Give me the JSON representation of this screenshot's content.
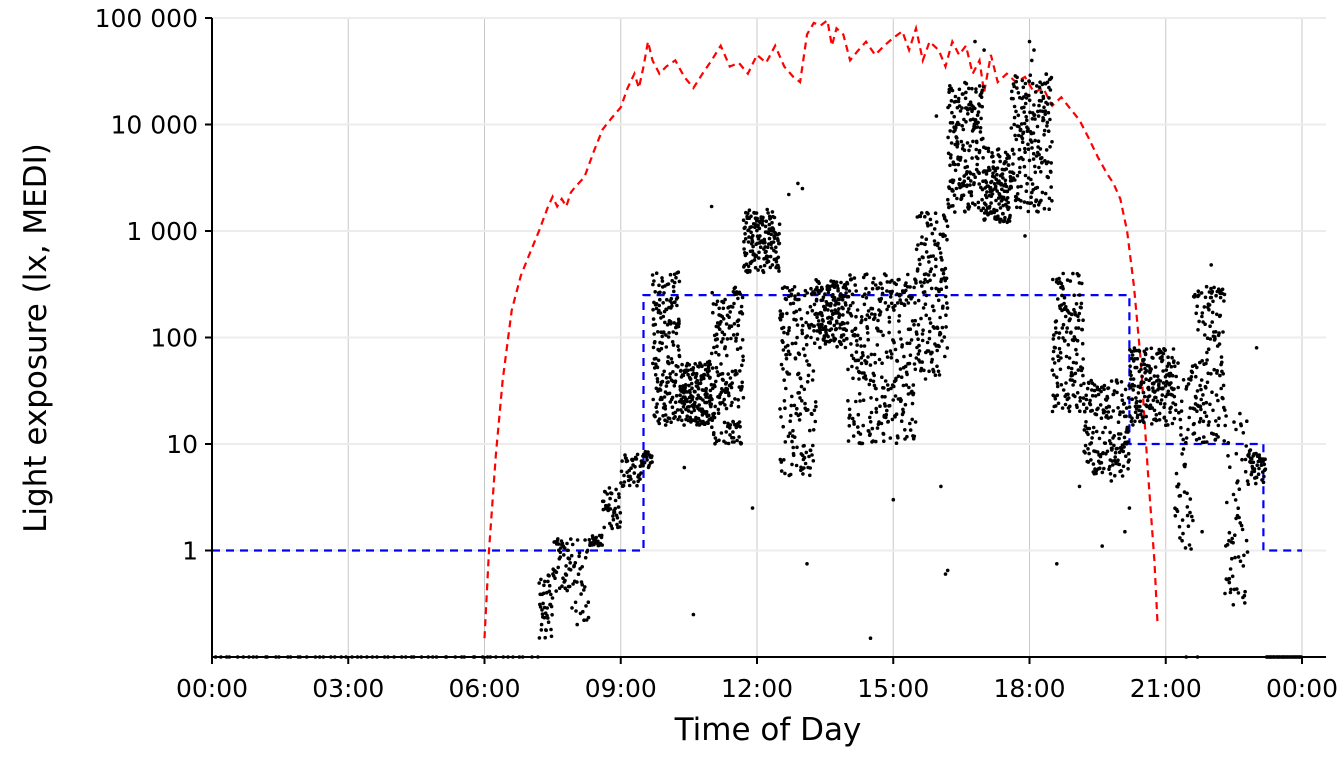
{
  "chart_data": {
    "type": "scatter",
    "title": "",
    "xlabel": "Time of Day",
    "ylabel": "Light exposure (lx, MEDI)",
    "x_unit": "hours",
    "xlim": [
      0,
      24.5
    ],
    "ylim": [
      0.1,
      100000
    ],
    "y_scale": "log",
    "grid": true,
    "legend": "none",
    "x_ticks": [
      {
        "value": 0,
        "label": "00:00"
      },
      {
        "value": 3,
        "label": "03:00"
      },
      {
        "value": 6,
        "label": "06:00"
      },
      {
        "value": 9,
        "label": "09:00"
      },
      {
        "value": 12,
        "label": "12:00"
      },
      {
        "value": 15,
        "label": "15:00"
      },
      {
        "value": 18,
        "label": "18:00"
      },
      {
        "value": 21,
        "label": "21:00"
      },
      {
        "value": 24,
        "label": "00:00"
      }
    ],
    "y_ticks": [
      {
        "value": 1,
        "label": "1"
      },
      {
        "value": 10,
        "label": "10"
      },
      {
        "value": 100,
        "label": "100"
      },
      {
        "value": 1000,
        "label": "1 000"
      },
      {
        "value": 10000,
        "label": "10 000"
      },
      {
        "value": 100000,
        "label": "100 000"
      }
    ],
    "series": [
      {
        "style": "dashed-line",
        "color": "#ff0000",
        "points": [
          [
            6.0,
            0.15
          ],
          [
            6.1,
            1.0
          ],
          [
            6.25,
            8
          ],
          [
            6.4,
            40
          ],
          [
            6.6,
            180
          ],
          [
            6.8,
            380
          ],
          [
            7.0,
            620
          ],
          [
            7.2,
            1000
          ],
          [
            7.4,
            1700
          ],
          [
            7.5,
            2100
          ],
          [
            7.6,
            1700
          ],
          [
            7.7,
            2000
          ],
          [
            7.8,
            1700
          ],
          [
            7.9,
            2300
          ],
          [
            8.0,
            2600
          ],
          [
            8.2,
            3200
          ],
          [
            8.4,
            5500
          ],
          [
            8.6,
            9000
          ],
          [
            8.8,
            11500
          ],
          [
            9.0,
            14500
          ],
          [
            9.15,
            22000
          ],
          [
            9.3,
            30000
          ],
          [
            9.4,
            22000
          ],
          [
            9.5,
            35000
          ],
          [
            9.6,
            60000
          ],
          [
            9.7,
            40000
          ],
          [
            9.85,
            30000
          ],
          [
            10.0,
            35000
          ],
          [
            10.2,
            40000
          ],
          [
            10.4,
            28000
          ],
          [
            10.6,
            22000
          ],
          [
            10.8,
            30000
          ],
          [
            11.0,
            40000
          ],
          [
            11.2,
            55000
          ],
          [
            11.4,
            35000
          ],
          [
            11.6,
            38000
          ],
          [
            11.8,
            30000
          ],
          [
            12.0,
            45000
          ],
          [
            12.2,
            38000
          ],
          [
            12.4,
            55000
          ],
          [
            12.6,
            35000
          ],
          [
            12.8,
            28000
          ],
          [
            12.95,
            25000
          ],
          [
            13.1,
            70000
          ],
          [
            13.25,
            90000
          ],
          [
            13.4,
            85000
          ],
          [
            13.55,
            95000
          ],
          [
            13.65,
            55000
          ],
          [
            13.75,
            80000
          ],
          [
            13.9,
            70000
          ],
          [
            14.05,
            40000
          ],
          [
            14.2,
            48000
          ],
          [
            14.4,
            60000
          ],
          [
            14.6,
            45000
          ],
          [
            14.8,
            55000
          ],
          [
            15.0,
            65000
          ],
          [
            15.2,
            75000
          ],
          [
            15.35,
            50000
          ],
          [
            15.5,
            80000
          ],
          [
            15.65,
            40000
          ],
          [
            15.8,
            60000
          ],
          [
            16.0,
            50000
          ],
          [
            16.15,
            35000
          ],
          [
            16.3,
            60000
          ],
          [
            16.45,
            45000
          ],
          [
            16.6,
            55000
          ],
          [
            16.75,
            30000
          ],
          [
            16.9,
            40000
          ],
          [
            17.0,
            20000
          ],
          [
            17.15,
            45000
          ],
          [
            17.3,
            25000
          ],
          [
            17.5,
            30000
          ],
          [
            17.7,
            25000
          ],
          [
            17.9,
            28000
          ],
          [
            18.1,
            20000
          ],
          [
            18.3,
            22000
          ],
          [
            18.5,
            15000
          ],
          [
            18.7,
            18000
          ],
          [
            18.9,
            14000
          ],
          [
            19.1,
            11000
          ],
          [
            19.3,
            7500
          ],
          [
            19.5,
            5000
          ],
          [
            19.7,
            3500
          ],
          [
            19.85,
            2800
          ],
          [
            20.0,
            2000
          ],
          [
            20.15,
            1000
          ],
          [
            20.3,
            300
          ],
          [
            20.45,
            60
          ],
          [
            20.6,
            6
          ],
          [
            20.75,
            0.8
          ],
          [
            20.82,
            0.2
          ]
        ]
      },
      {
        "style": "dashed-step",
        "color": "#0000ff",
        "points": [
          [
            0,
            1
          ],
          [
            9.5,
            1
          ],
          [
            9.5,
            250
          ],
          [
            20.2,
            250
          ],
          [
            20.2,
            10
          ],
          [
            23.15,
            10
          ],
          [
            23.15,
            1
          ],
          [
            24,
            1
          ]
        ]
      },
      {
        "style": "points",
        "color": "#000000",
        "segments": [
          {
            "t0": 0,
            "t1": 7.2,
            "ylo": 0.1,
            "yhi": 0.1,
            "n": 60
          },
          {
            "t0": 7.2,
            "t1": 7.5,
            "ylo": 0.15,
            "yhi": 0.6,
            "n": 40
          },
          {
            "t0": 7.5,
            "t1": 7.9,
            "ylo": 0.4,
            "yhi": 1.3,
            "n": 45
          },
          {
            "t0": 7.9,
            "t1": 8.3,
            "ylo": 0.2,
            "yhi": 1.3,
            "n": 35
          },
          {
            "t0": 8.3,
            "t1": 8.6,
            "ylo": 1.1,
            "yhi": 1.4,
            "n": 25
          },
          {
            "t0": 8.6,
            "t1": 9.0,
            "ylo": 1.6,
            "yhi": 4.0,
            "n": 40
          },
          {
            "t0": 9.0,
            "t1": 9.45,
            "ylo": 4.0,
            "yhi": 8.0,
            "n": 40
          },
          {
            "t0": 9.45,
            "t1": 9.7,
            "ylo": 6.0,
            "yhi": 8.5,
            "n": 20
          },
          {
            "t0": 9.7,
            "t1": 10.3,
            "ylo": 15,
            "yhi": 450,
            "n": 180
          },
          {
            "t0": 10.3,
            "t1": 11.0,
            "ylo": 15,
            "yhi": 60,
            "n": 180
          },
          {
            "t0": 11.0,
            "t1": 11.7,
            "ylo": 10,
            "yhi": 300,
            "n": 180
          },
          {
            "t0": 11.7,
            "t1": 12.5,
            "ylo": 400,
            "yhi": 1600,
            "n": 170
          },
          {
            "t0": 12.5,
            "t1": 13.3,
            "ylo": 5,
            "yhi": 300,
            "n": 180
          },
          {
            "t0": 13.3,
            "t1": 14.0,
            "ylo": 80,
            "yhi": 350,
            "n": 170
          },
          {
            "t0": 14.0,
            "t1": 15.5,
            "ylo": 10,
            "yhi": 400,
            "n": 320
          },
          {
            "t0": 15.5,
            "t1": 16.2,
            "ylo": 40,
            "yhi": 1500,
            "n": 160
          },
          {
            "t0": 16.2,
            "t1": 17.0,
            "ylo": 1500,
            "yhi": 25000,
            "n": 200
          },
          {
            "t0": 17.0,
            "t1": 17.6,
            "ylo": 1200,
            "yhi": 6000,
            "n": 150
          },
          {
            "t0": 17.6,
            "t1": 18.5,
            "ylo": 1500,
            "yhi": 30000,
            "n": 200
          },
          {
            "t0": 18.5,
            "t1": 19.2,
            "ylo": 20,
            "yhi": 400,
            "n": 150
          },
          {
            "t0": 19.2,
            "t1": 20.2,
            "ylo": 5,
            "yhi": 40,
            "n": 180
          },
          {
            "t0": 20.2,
            "t1": 21.2,
            "ylo": 15,
            "yhi": 80,
            "n": 200
          },
          {
            "t0": 21.2,
            "t1": 21.6,
            "ylo": 1,
            "yhi": 60,
            "n": 60
          },
          {
            "t0": 21.6,
            "t1": 22.3,
            "ylo": 10,
            "yhi": 300,
            "n": 140
          },
          {
            "t0": 22.3,
            "t1": 22.8,
            "ylo": 0.3,
            "yhi": 20,
            "n": 60
          },
          {
            "t0": 22.8,
            "t1": 23.2,
            "ylo": 4,
            "yhi": 9,
            "n": 50
          },
          {
            "t0": 23.2,
            "t1": 24.0,
            "ylo": 0.1,
            "yhi": 0.1,
            "n": 40
          }
        ],
        "extra_points": [
          [
            13.1,
            0.75
          ],
          [
            14.5,
            0.15
          ],
          [
            10.6,
            0.25
          ],
          [
            16.2,
            0.65
          ],
          [
            16.15,
            0.6
          ],
          [
            18.0,
            60000
          ],
          [
            18.1,
            50000
          ],
          [
            16.8,
            60000
          ],
          [
            17.0,
            50000
          ],
          [
            15.95,
            12000
          ],
          [
            16.6,
            20000
          ],
          [
            16.3,
            3000
          ],
          [
            17.9,
            900
          ],
          [
            18.05,
            40000
          ],
          [
            18.2,
            12000
          ],
          [
            19.6,
            1.1
          ],
          [
            22.0,
            480
          ],
          [
            21.9,
            300
          ],
          [
            23.0,
            80
          ],
          [
            22.6,
            0.4
          ],
          [
            21.45,
            0.1
          ],
          [
            21.7,
            0.1
          ],
          [
            20.2,
            2.5
          ],
          [
            20.1,
            1.5
          ],
          [
            13.0,
            2500
          ],
          [
            12.9,
            2800
          ],
          [
            12.7,
            2200
          ],
          [
            10.4,
            6
          ],
          [
            11.0,
            1700
          ],
          [
            11.9,
            2.5
          ],
          [
            19.1,
            4.0
          ],
          [
            19.8,
            4.5
          ],
          [
            18.6,
            0.75
          ],
          [
            21.8,
            1.5
          ],
          [
            22.4,
            0.5
          ],
          [
            22.55,
            2.0
          ],
          [
            21.0,
            15
          ],
          [
            20.5,
            60
          ],
          [
            16.05,
            4
          ],
          [
            15.0,
            3
          ]
        ]
      }
    ]
  }
}
